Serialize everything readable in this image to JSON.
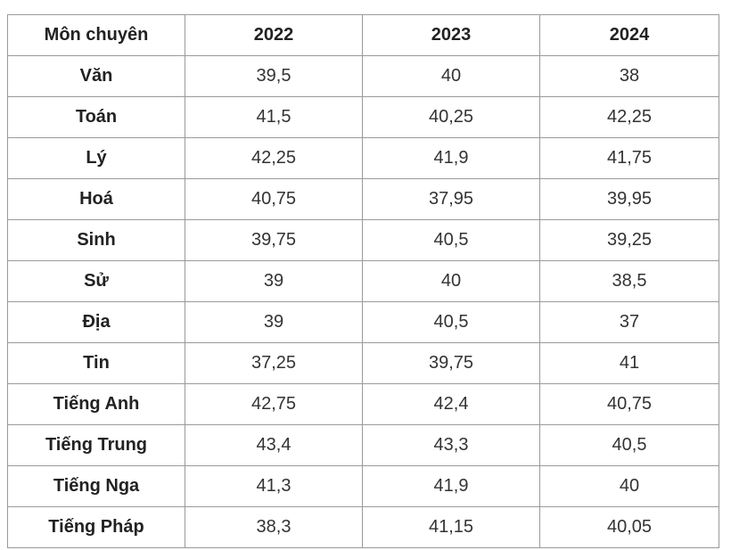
{
  "table": {
    "headers": [
      "Môn chuyên",
      "2022",
      "2023",
      "2024"
    ],
    "rows": [
      [
        "Văn",
        "39,5",
        "40",
        "38"
      ],
      [
        "Toán",
        "41,5",
        "40,25",
        "42,25"
      ],
      [
        "Lý",
        "42,25",
        "41,9",
        "41,75"
      ],
      [
        "Hoá",
        "40,75",
        "37,95",
        "39,95"
      ],
      [
        "Sinh",
        "39,75",
        "40,5",
        "39,25"
      ],
      [
        "Sử",
        "39",
        "40",
        "38,5"
      ],
      [
        "Địa",
        "39",
        "40,5",
        "37"
      ],
      [
        "Tin",
        "37,25",
        "39,75",
        "41"
      ],
      [
        "Tiếng Anh",
        "42,75",
        "42,4",
        "40,75"
      ],
      [
        "Tiếng Trung",
        "43,4",
        "43,3",
        "40,5"
      ],
      [
        "Tiếng Nga",
        "41,3",
        "41,9",
        "40"
      ],
      [
        "Tiếng Pháp",
        "38,3",
        "41,15",
        "40,05"
      ]
    ]
  }
}
